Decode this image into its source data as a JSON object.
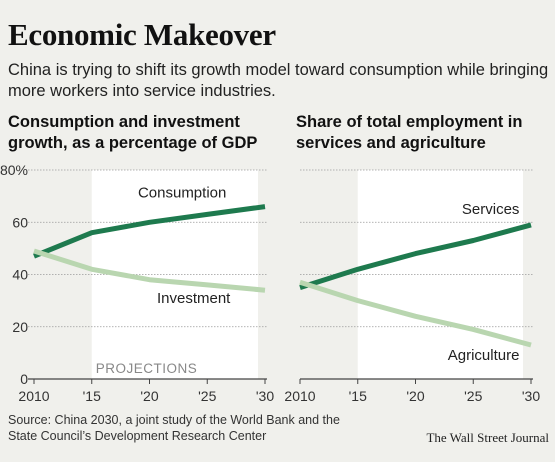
{
  "header": {
    "title": "Economic Makeover",
    "subtitle": "China is trying to shift its growth model toward consumption while bringing more workers into service industries."
  },
  "footer": {
    "source": "Source: China 2030, a joint study of the World Bank and the State Council’s Development Research Center",
    "credit": "The Wall Street Journal"
  },
  "colors": {
    "dark_green": "#1e7a4e",
    "light_green": "#b9d6b0",
    "projection_band": "#ffffff",
    "background": "#f0f0ec"
  },
  "chart_data": [
    {
      "type": "line",
      "title": "Consumption and investment growth, as a percentage of GDP",
      "x_ticks": [
        "2010",
        "'15",
        "'20",
        "'25",
        "'30"
      ],
      "y_ticks": [
        "0",
        "20",
        "40",
        "60",
        "80%"
      ],
      "ylim": [
        0,
        80
      ],
      "xlim": [
        2010,
        2030
      ],
      "grid": true,
      "projection_start": 2015,
      "projection_label": "PROJECTIONS",
      "series": [
        {
          "name": "Consumption",
          "color": "#1e7a4e",
          "x": [
            2010,
            2015,
            2020,
            2025,
            2030
          ],
          "values": [
            47,
            56,
            60,
            63,
            66
          ]
        },
        {
          "name": "Investment",
          "color": "#b9d6b0",
          "x": [
            2010,
            2015,
            2020,
            2025,
            2030
          ],
          "values": [
            49,
            42,
            38,
            36,
            34
          ]
        }
      ]
    },
    {
      "type": "line",
      "title": "Share of total employment in services and agriculture",
      "x_ticks": [
        "2010",
        "'15",
        "'20",
        "'25",
        "'30"
      ],
      "ylim": [
        0,
        80
      ],
      "xlim": [
        2010,
        2030
      ],
      "grid": true,
      "projection_start": 2015,
      "series": [
        {
          "name": "Services",
          "color": "#1e7a4e",
          "x": [
            2010,
            2015,
            2020,
            2025,
            2030
          ],
          "values": [
            35,
            42,
            48,
            53,
            59
          ]
        },
        {
          "name": "Agriculture",
          "color": "#b9d6b0",
          "x": [
            2010,
            2015,
            2020,
            2025,
            2030
          ],
          "values": [
            37,
            30,
            24,
            19,
            13
          ]
        }
      ]
    }
  ]
}
